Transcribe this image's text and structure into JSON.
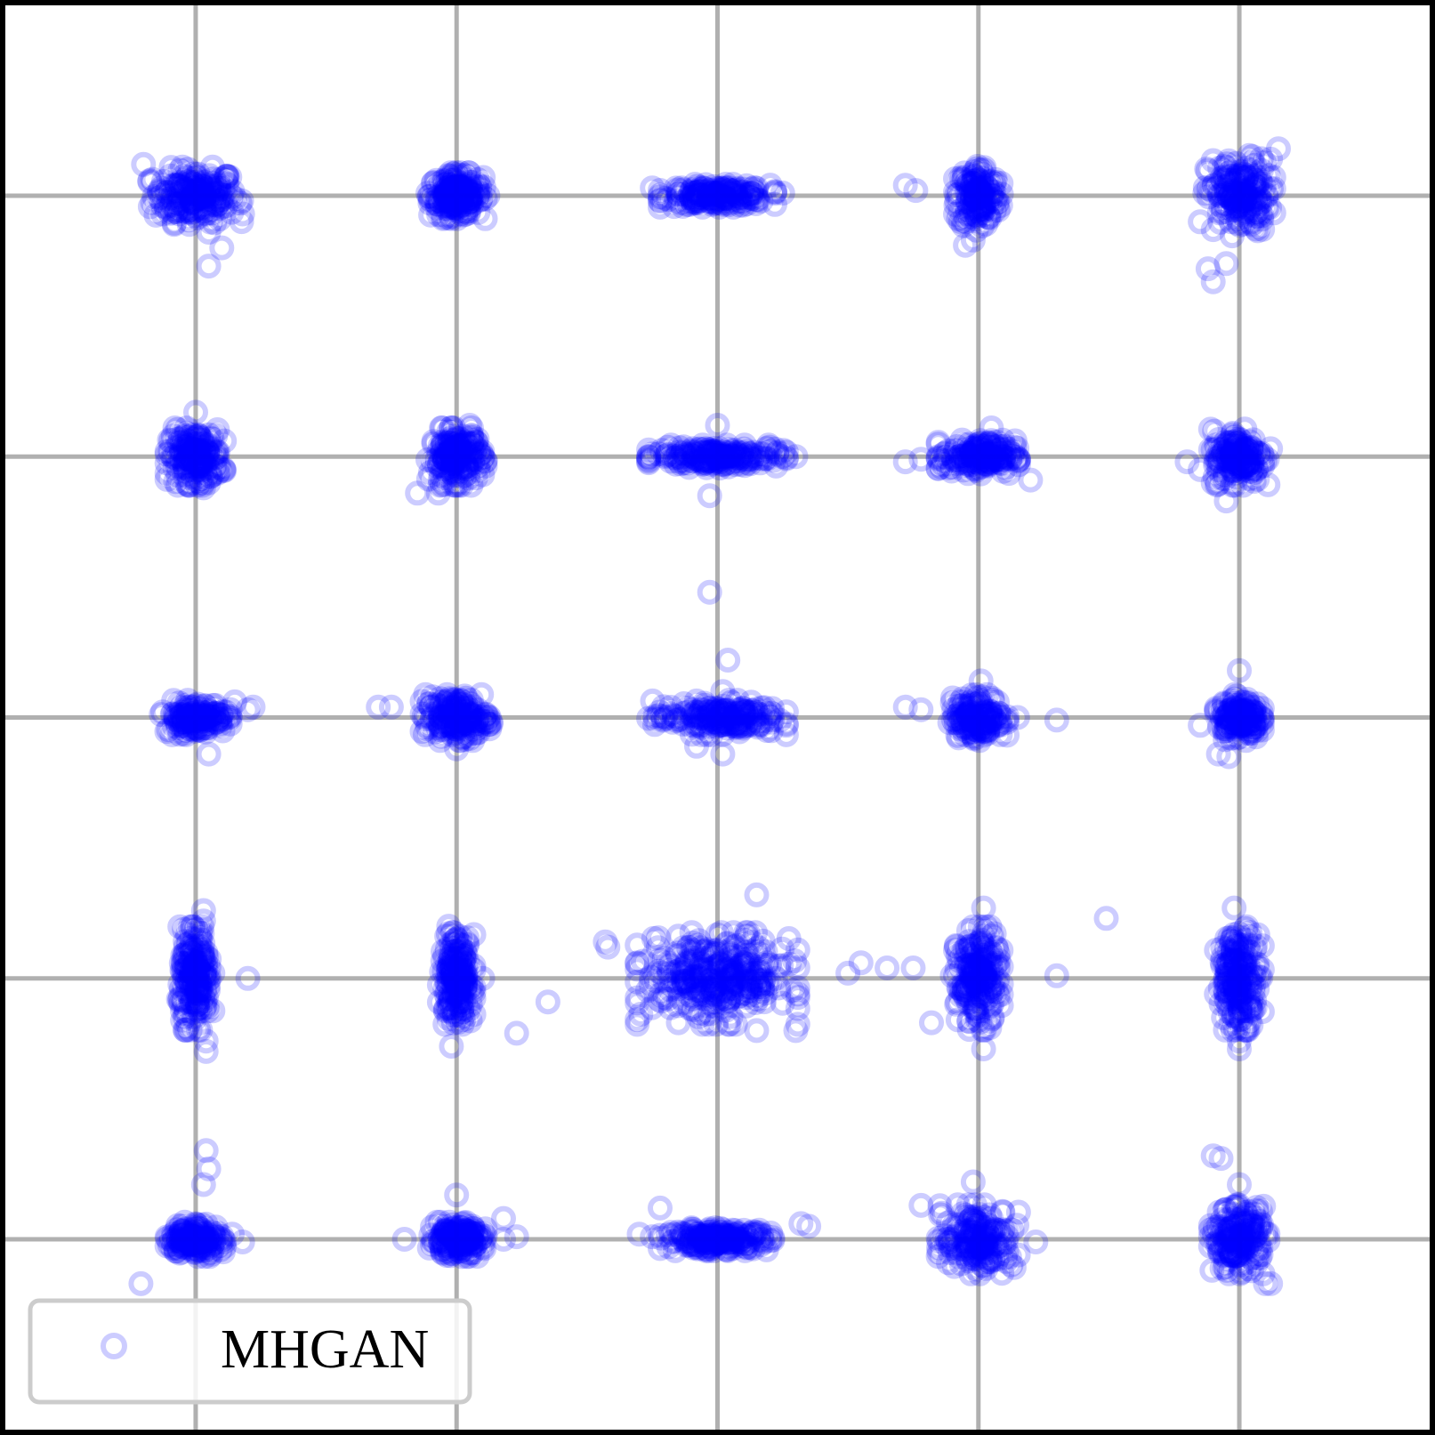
{
  "chart_data": {
    "type": "scatter",
    "title": "",
    "xlabel": "",
    "ylabel": "",
    "xlim": [
      -0.75,
      4.75
    ],
    "ylim": [
      -0.75,
      4.75
    ],
    "grid": true,
    "grid_lines": [
      0,
      1,
      2,
      3,
      4
    ],
    "tick_labels_visible": false,
    "legend": {
      "position": "lower-left",
      "entries": [
        "MHGAN"
      ]
    },
    "series": [
      {
        "name": "MHGAN",
        "color": "#0000ff",
        "marker": "open-circle",
        "alpha": 0.2,
        "clusters": [
          {
            "center": [
              0,
              4
            ],
            "count": 200,
            "spread": [
              0.08,
              0.05
            ],
            "outliers": [
              [
                -0.2,
                4.12
              ],
              [
                0.1,
                3.8
              ],
              [
                0.05,
                3.73
              ],
              [
                0.18,
                3.93
              ],
              [
                0.05,
                3.86
              ]
            ]
          },
          {
            "center": [
              1,
              4
            ],
            "count": 200,
            "spread": [
              0.05,
              0.04
            ],
            "outliers": [
              [
                1.12,
                4.0
              ],
              [
                0.98,
                3.92
              ]
            ]
          },
          {
            "center": [
              2,
              4
            ],
            "count": 180,
            "spread": [
              0.1,
              0.02
            ],
            "outliers": [
              [
                1.75,
                4.03
              ],
              [
                1.8,
                3.99
              ],
              [
                2.25,
                4.01
              ]
            ]
          },
          {
            "center": [
              3,
              4
            ],
            "count": 150,
            "spread": [
              0.04,
              0.06
            ],
            "outliers": [
              [
                2.72,
                4.04
              ],
              [
                2.76,
                4.02
              ],
              [
                2.95,
                3.81
              ],
              [
                2.98,
                3.83
              ],
              [
                3.05,
                3.95
              ]
            ]
          },
          {
            "center": [
              4,
              4
            ],
            "count": 180,
            "spread": [
              0.06,
              0.07
            ],
            "outliers": [
              [
                4.15,
                4.18
              ],
              [
                4.12,
                4.14
              ],
              [
                3.85,
                3.9
              ],
              [
                3.9,
                3.87
              ],
              [
                3.95,
                3.74
              ],
              [
                3.88,
                3.72
              ],
              [
                3.9,
                3.67
              ]
            ]
          },
          {
            "center": [
              0,
              3
            ],
            "count": 180,
            "spread": [
              0.05,
              0.05
            ],
            "outliers": [
              [
                0.0,
                3.17
              ],
              [
                0.08,
                3.02
              ],
              [
                0.05,
                2.9
              ],
              [
                0.03,
                2.88
              ]
            ]
          },
          {
            "center": [
              1,
              3
            ],
            "count": 180,
            "spread": [
              0.05,
              0.05
            ],
            "outliers": [
              [
                1.1,
                3.0
              ],
              [
                0.85,
                2.86
              ],
              [
                0.93,
                2.86
              ],
              [
                1.05,
                3.12
              ]
            ]
          },
          {
            "center": [
              2,
              3
            ],
            "count": 200,
            "spread": [
              0.12,
              0.02
            ],
            "outliers": [
              [
                1.75,
                3.01
              ],
              [
                2.3,
                3.0
              ],
              [
                1.97,
                2.85
              ],
              [
                2.0,
                3.12
              ]
            ]
          },
          {
            "center": [
              3,
              3
            ],
            "count": 180,
            "spread": [
              0.07,
              0.03
            ],
            "outliers": [
              [
                2.72,
                2.98
              ],
              [
                2.78,
                2.99
              ],
              [
                3.2,
                2.91
              ],
              [
                3.05,
                3.11
              ]
            ]
          },
          {
            "center": [
              4,
              3
            ],
            "count": 160,
            "spread": [
              0.05,
              0.05
            ],
            "outliers": [
              [
                3.8,
                2.98
              ],
              [
                3.85,
                2.95
              ],
              [
                3.9,
                2.9
              ],
              [
                3.95,
                2.83
              ],
              [
                4.12,
                3.03
              ]
            ]
          },
          {
            "center": [
              0,
              2
            ],
            "count": 160,
            "spread": [
              0.06,
              0.03
            ],
            "outliers": [
              [
                0.15,
                2.06
              ],
              [
                0.2,
                2.03
              ],
              [
                0.22,
                2.04
              ],
              [
                0.0,
                1.96
              ],
              [
                0.05,
                1.86
              ]
            ]
          },
          {
            "center": [
              1,
              2
            ],
            "count": 180,
            "spread": [
              0.06,
              0.04
            ],
            "outliers": [
              [
                0.7,
                2.04
              ],
              [
                0.75,
                2.04
              ],
              [
                1.12,
                2.0
              ],
              [
                1.0,
                1.88
              ],
              [
                1.05,
                1.92
              ]
            ]
          },
          {
            "center": [
              2,
              2
            ],
            "count": 200,
            "spread": [
              0.12,
              0.03
            ],
            "outliers": [
              [
                2.04,
                2.22
              ],
              [
                2.02,
                2.1
              ],
              [
                2.02,
                1.86
              ],
              [
                1.92,
                1.89
              ],
              [
                1.97,
                2.48
              ]
            ]
          },
          {
            "center": [
              3,
              2
            ],
            "count": 160,
            "spread": [
              0.05,
              0.04
            ],
            "outliers": [
              [
                2.72,
                2.04
              ],
              [
                2.78,
                2.03
              ],
              [
                3.15,
                2.0
              ],
              [
                3.3,
                1.99
              ],
              [
                3.01,
                2.14
              ]
            ]
          },
          {
            "center": [
              4,
              2
            ],
            "count": 160,
            "spread": [
              0.04,
              0.04
            ],
            "outliers": [
              [
                3.85,
                1.97
              ],
              [
                3.92,
                1.86
              ],
              [
                3.96,
                1.85
              ],
              [
                4.0,
                2.18
              ]
            ]
          },
          {
            "center": [
              0,
              1
            ],
            "count": 200,
            "spread": [
              0.03,
              0.09
            ],
            "outliers": [
              [
                0.2,
                1.0
              ],
              [
                0.04,
                0.76
              ],
              [
                0.04,
                0.72
              ],
              [
                0.03,
                1.26
              ],
              [
                0.03,
                1.22
              ]
            ]
          },
          {
            "center": [
              1,
              1
            ],
            "count": 200,
            "spread": [
              0.03,
              0.08
            ],
            "outliers": [
              [
                1.1,
                1.0
              ],
              [
                1.23,
                0.79
              ],
              [
                1.35,
                0.91
              ],
              [
                0.98,
                0.74
              ],
              [
                0.97,
                1.2
              ]
            ]
          },
          {
            "center": [
              2,
              1
            ],
            "count": 320,
            "spread": [
              0.14,
              0.08
            ],
            "outliers": [
              [
                1.57,
                1.14
              ],
              [
                1.58,
                1.12
              ],
              [
                2.55,
                1.06
              ],
              [
                2.65,
                1.04
              ],
              [
                2.75,
                1.04
              ],
              [
                2.5,
                1.02
              ],
              [
                2.15,
                0.8
              ],
              [
                2.3,
                0.8
              ],
              [
                1.85,
                0.83
              ],
              [
                2.15,
                1.32
              ]
            ]
          },
          {
            "center": [
              3,
              1
            ],
            "count": 200,
            "spread": [
              0.04,
              0.09
            ],
            "outliers": [
              [
                2.82,
                0.83
              ],
              [
                3.3,
                1.01
              ],
              [
                3.02,
                0.73
              ],
              [
                3.02,
                1.27
              ],
              [
                2.9,
                1.01
              ],
              [
                3.49,
                1.23
              ]
            ]
          },
          {
            "center": [
              4,
              1
            ],
            "count": 200,
            "spread": [
              0.04,
              0.09
            ],
            "outliers": [
              [
                3.98,
                1.27
              ],
              [
                4.0,
                0.73
              ],
              [
                4.0,
                0.76
              ]
            ]
          },
          {
            "center": [
              0,
              0
            ],
            "count": 180,
            "spread": [
              0.05,
              0.03
            ],
            "outliers": [
              [
                -0.21,
                -0.17
              ],
              [
                0.04,
                0.34
              ],
              [
                0.05,
                0.27
              ],
              [
                0.03,
                0.21
              ],
              [
                0.18,
                -0.01
              ],
              [
                0.14,
                0.02
              ],
              [
                -0.1,
                -0.02
              ]
            ]
          },
          {
            "center": [
              1,
              0
            ],
            "count": 180,
            "spread": [
              0.05,
              0.03
            ],
            "outliers": [
              [
                0.8,
                0.0
              ],
              [
                1.18,
                0.0
              ],
              [
                1.23,
                0.01
              ],
              [
                1.18,
                0.08
              ],
              [
                1.0,
                0.17
              ]
            ]
          },
          {
            "center": [
              2,
              0
            ],
            "count": 220,
            "spread": [
              0.1,
              0.02
            ],
            "outliers": [
              [
                1.7,
                0.02
              ],
              [
                1.75,
                0.01
              ],
              [
                2.32,
                0.06
              ],
              [
                2.35,
                0.05
              ],
              [
                1.78,
                0.12
              ]
            ]
          },
          {
            "center": [
              3,
              0
            ],
            "count": 180,
            "spread": [
              0.07,
              0.06
            ],
            "outliers": [
              [
                2.78,
                0.13
              ],
              [
                2.86,
                0.1
              ],
              [
                3.22,
                -0.01
              ],
              [
                3.09,
                -0.13
              ],
              [
                2.98,
                0.22
              ]
            ]
          },
          {
            "center": [
              4,
              0
            ],
            "count": 180,
            "spread": [
              0.05,
              0.06
            ],
            "outliers": [
              [
                4.1,
                -0.17
              ],
              [
                4.12,
                -0.17
              ],
              [
                3.92,
                0.05
              ],
              [
                3.9,
                0.32
              ],
              [
                3.93,
                0.31
              ],
              [
                4.0,
                0.21
              ]
            ]
          }
        ]
      }
    ]
  }
}
